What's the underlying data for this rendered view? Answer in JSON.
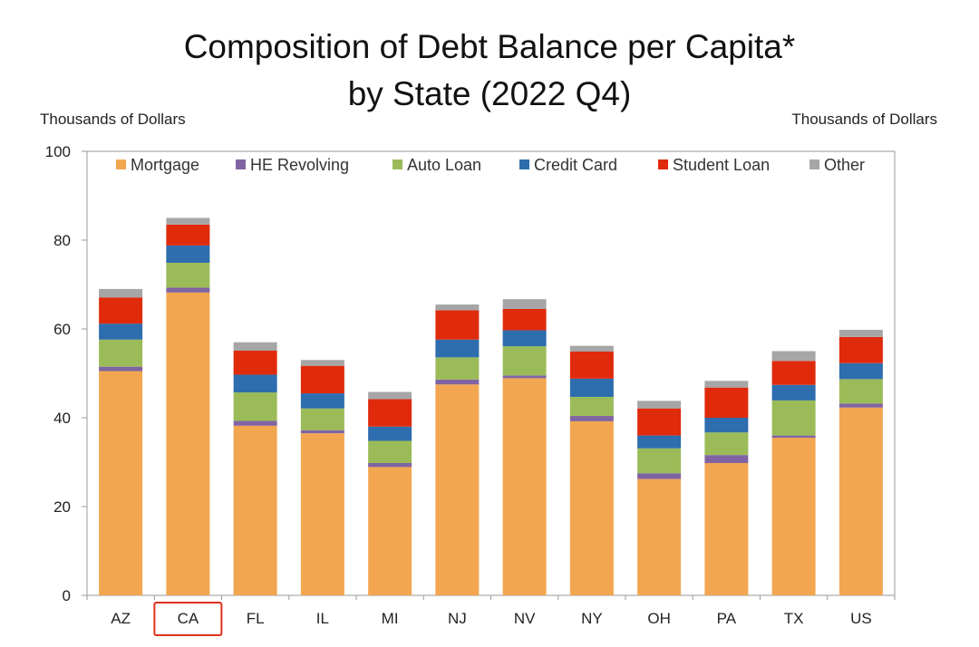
{
  "chart_data": {
    "type": "bar",
    "stacked": true,
    "title": "Composition of Debt Balance per Capita*",
    "subtitle": "by State (2022 Q4)",
    "ylabel_left": "Thousands of Dollars",
    "ylabel_right": "Thousands of Dollars",
    "ylim": [
      0,
      100
    ],
    "yticks": [
      0,
      20,
      40,
      60,
      80,
      100
    ],
    "categories": [
      "AZ",
      "CA",
      "FL",
      "IL",
      "MI",
      "NJ",
      "NV",
      "NY",
      "OH",
      "PA",
      "TX",
      "US"
    ],
    "highlighted_category": "CA",
    "legend_position": "top",
    "series": [
      {
        "name": "Mortgage",
        "color": "#F2A650",
        "values": [
          50.5,
          68.2,
          38.2,
          36.5,
          28.9,
          47.5,
          48.9,
          39.2,
          26.2,
          29.8,
          35.5,
          42.3
        ]
      },
      {
        "name": "HE Revolving",
        "color": "#8064A2",
        "values": [
          1.0,
          1.1,
          1.1,
          0.7,
          0.9,
          1.1,
          0.6,
          1.2,
          1.3,
          1.8,
          0.5,
          0.9
        ]
      },
      {
        "name": "Auto Loan",
        "color": "#9BBB59",
        "values": [
          6.1,
          5.6,
          6.4,
          4.9,
          5.0,
          5.0,
          6.6,
          4.3,
          5.6,
          5.1,
          7.9,
          5.5
        ]
      },
      {
        "name": "Credit Card",
        "color": "#2E6DAE",
        "values": [
          3.6,
          3.9,
          4.0,
          3.4,
          3.2,
          4.0,
          3.6,
          4.1,
          2.9,
          3.3,
          3.5,
          3.6
        ]
      },
      {
        "name": "Student Loan",
        "color": "#E02A0C",
        "values": [
          5.9,
          4.7,
          5.4,
          6.2,
          6.2,
          6.6,
          4.8,
          6.1,
          6.1,
          6.8,
          5.4,
          5.9
        ]
      },
      {
        "name": "Other",
        "color": "#A6A6A6",
        "values": [
          1.9,
          1.5,
          1.9,
          1.3,
          1.6,
          1.3,
          2.2,
          1.3,
          1.7,
          1.5,
          2.2,
          1.6
        ]
      }
    ]
  }
}
